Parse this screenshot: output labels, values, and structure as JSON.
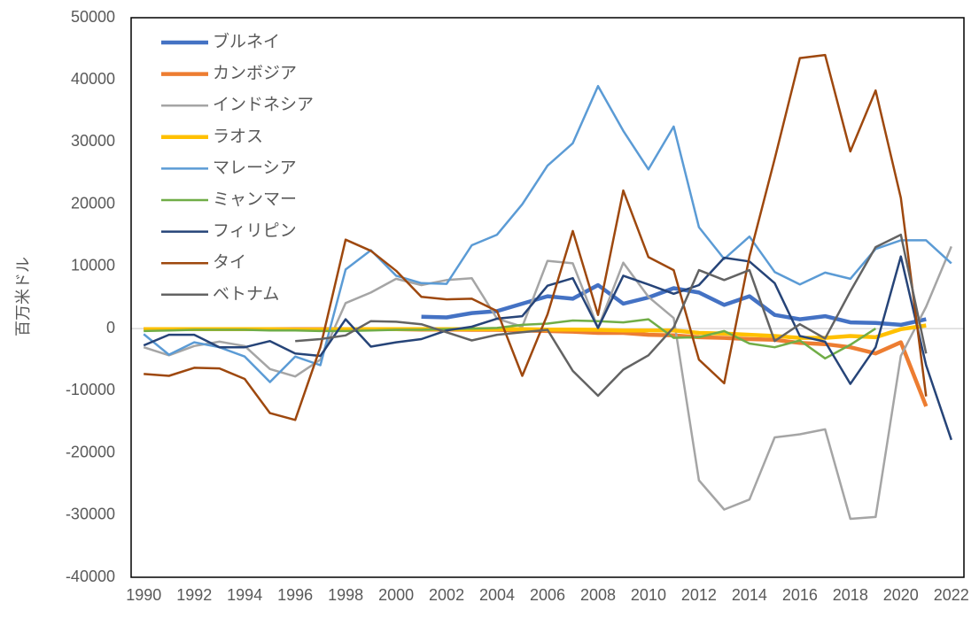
{
  "chart_data": {
    "type": "line",
    "y_label": "百万米ドル",
    "x": [
      1990,
      1991,
      1992,
      1993,
      1994,
      1995,
      1996,
      1997,
      1998,
      1999,
      2000,
      2001,
      2002,
      2003,
      2004,
      2005,
      2006,
      2007,
      2008,
      2009,
      2010,
      2011,
      2012,
      2013,
      2014,
      2015,
      2016,
      2017,
      2018,
      2019,
      2020,
      2021,
      2022
    ],
    "xlim": [
      1989.5,
      2022.5
    ],
    "xticks": [
      1990,
      1992,
      1994,
      1996,
      1998,
      2000,
      2002,
      2004,
      2006,
      2008,
      2010,
      2012,
      2014,
      2016,
      2018,
      2020,
      2022
    ],
    "ylim": [
      -40000,
      50000
    ],
    "yticks": [
      -40000,
      -30000,
      -20000,
      -10000,
      0,
      10000,
      20000,
      30000,
      40000,
      50000
    ],
    "legend": "upper left",
    "series": [
      {
        "name": "ブルネイ",
        "color": "#4472c4",
        "width": 4.5,
        "values": [
          null,
          null,
          null,
          null,
          null,
          null,
          null,
          null,
          null,
          null,
          null,
          1900,
          1800,
          2500,
          2800,
          4000,
          5200,
          4800,
          7000,
          4000,
          5000,
          6500,
          5800,
          3800,
          5200,
          2200,
          1500,
          2000,
          1000,
          900,
          600,
          1500,
          null
        ]
      },
      {
        "name": "カンボジア",
        "color": "#ed7d31",
        "width": 4.5,
        "values": [
          -100,
          -100,
          -100,
          -100,
          -100,
          -100,
          -100,
          -100,
          -100,
          -100,
          -100,
          -150,
          -150,
          -200,
          -200,
          -300,
          -400,
          -500,
          -700,
          -700,
          -1000,
          -1100,
          -1400,
          -1500,
          -1700,
          -1800,
          -2300,
          -2500,
          -3000,
          -4000,
          -2200,
          -12500,
          null
        ]
      },
      {
        "name": "インドネシア",
        "color": "#a5a5a5",
        "width": 2.5,
        "values": [
          -3000,
          -4300,
          -2800,
          -2100,
          -2800,
          -6500,
          -7700,
          -5000,
          4100,
          5800,
          8000,
          7000,
          7800,
          8100,
          1600,
          300,
          10900,
          10500,
          100,
          10600,
          5100,
          1700,
          -24400,
          -29100,
          -27500,
          -17500,
          -17000,
          -16200,
          -30600,
          -30300,
          -4400,
          3500,
          13200
        ]
      },
      {
        "name": "ラオス",
        "color": "#ffc000",
        "width": 4.5,
        "values": [
          -100,
          -100,
          -100,
          -100,
          -100,
          -100,
          -150,
          -150,
          -100,
          -100,
          -100,
          -100,
          -100,
          -100,
          -100,
          -100,
          -150,
          -150,
          -200,
          -300,
          -300,
          -300,
          -700,
          -800,
          -1000,
          -1200,
          -1500,
          -1500,
          -1200,
          -1400,
          -100,
          500,
          null
        ]
      },
      {
        "name": "マレーシア",
        "color": "#5b9bd5",
        "width": 2.5,
        "values": [
          -900,
          -4200,
          -2200,
          -3000,
          -4500,
          -8600,
          -4500,
          -5900,
          9500,
          12600,
          8500,
          7300,
          7200,
          13400,
          15100,
          20000,
          26200,
          29800,
          39000,
          31800,
          25600,
          32500,
          16300,
          11200,
          14800,
          9100,
          7100,
          9000,
          8000,
          12800,
          14200,
          14200,
          10500
        ]
      },
      {
        "name": "ミャンマー",
        "color": "#70ad47",
        "width": 2.5,
        "values": [
          -400,
          -300,
          -200,
          -200,
          -200,
          -300,
          -300,
          -400,
          -400,
          -300,
          -200,
          -200,
          -100,
          0,
          100,
          600,
          800,
          1300,
          1200,
          1000,
          1500,
          -1500,
          -1400,
          -400,
          -2400,
          -3000,
          -1900,
          -4800,
          -2600,
          0,
          null,
          null,
          null
        ]
      },
      {
        "name": "フィリピン",
        "color": "#264478",
        "width": 2.5,
        "values": [
          -2700,
          -1000,
          -1000,
          -3000,
          -3000,
          -2000,
          -4000,
          -4400,
          1500,
          -2900,
          -2200,
          -1700,
          -300,
          300,
          1600,
          2000,
          6900,
          8100,
          100,
          8500,
          7100,
          5600,
          7000,
          11400,
          10800,
          7300,
          -1200,
          -2100,
          -8900,
          -3000,
          11600,
          -5900,
          -17900
        ]
      },
      {
        "name": "タイ",
        "color": "#9e480e",
        "width": 2.5,
        "values": [
          -7300,
          -7600,
          -6300,
          -6400,
          -8100,
          -13600,
          -14700,
          -3000,
          14300,
          12500,
          9300,
          5100,
          4700,
          4800,
          2800,
          -7600,
          2300,
          15700,
          2200,
          22200,
          11500,
          9400,
          -5000,
          -8800,
          11600,
          27300,
          43500,
          44000,
          28500,
          38300,
          21000,
          -10900,
          null
        ]
      },
      {
        "name": "ベトナム",
        "color": "#636363",
        "width": 2.5,
        "values": [
          null,
          null,
          null,
          null,
          null,
          null,
          -2000,
          -1700,
          -1100,
          1200,
          1100,
          700,
          -600,
          -1900,
          -1000,
          -600,
          -200,
          -6800,
          -10800,
          -6600,
          -4300,
          200,
          9400,
          7800,
          9400,
          -2000,
          700,
          -1600,
          6000,
          13100,
          15100,
          -4000,
          null
        ]
      }
    ]
  }
}
